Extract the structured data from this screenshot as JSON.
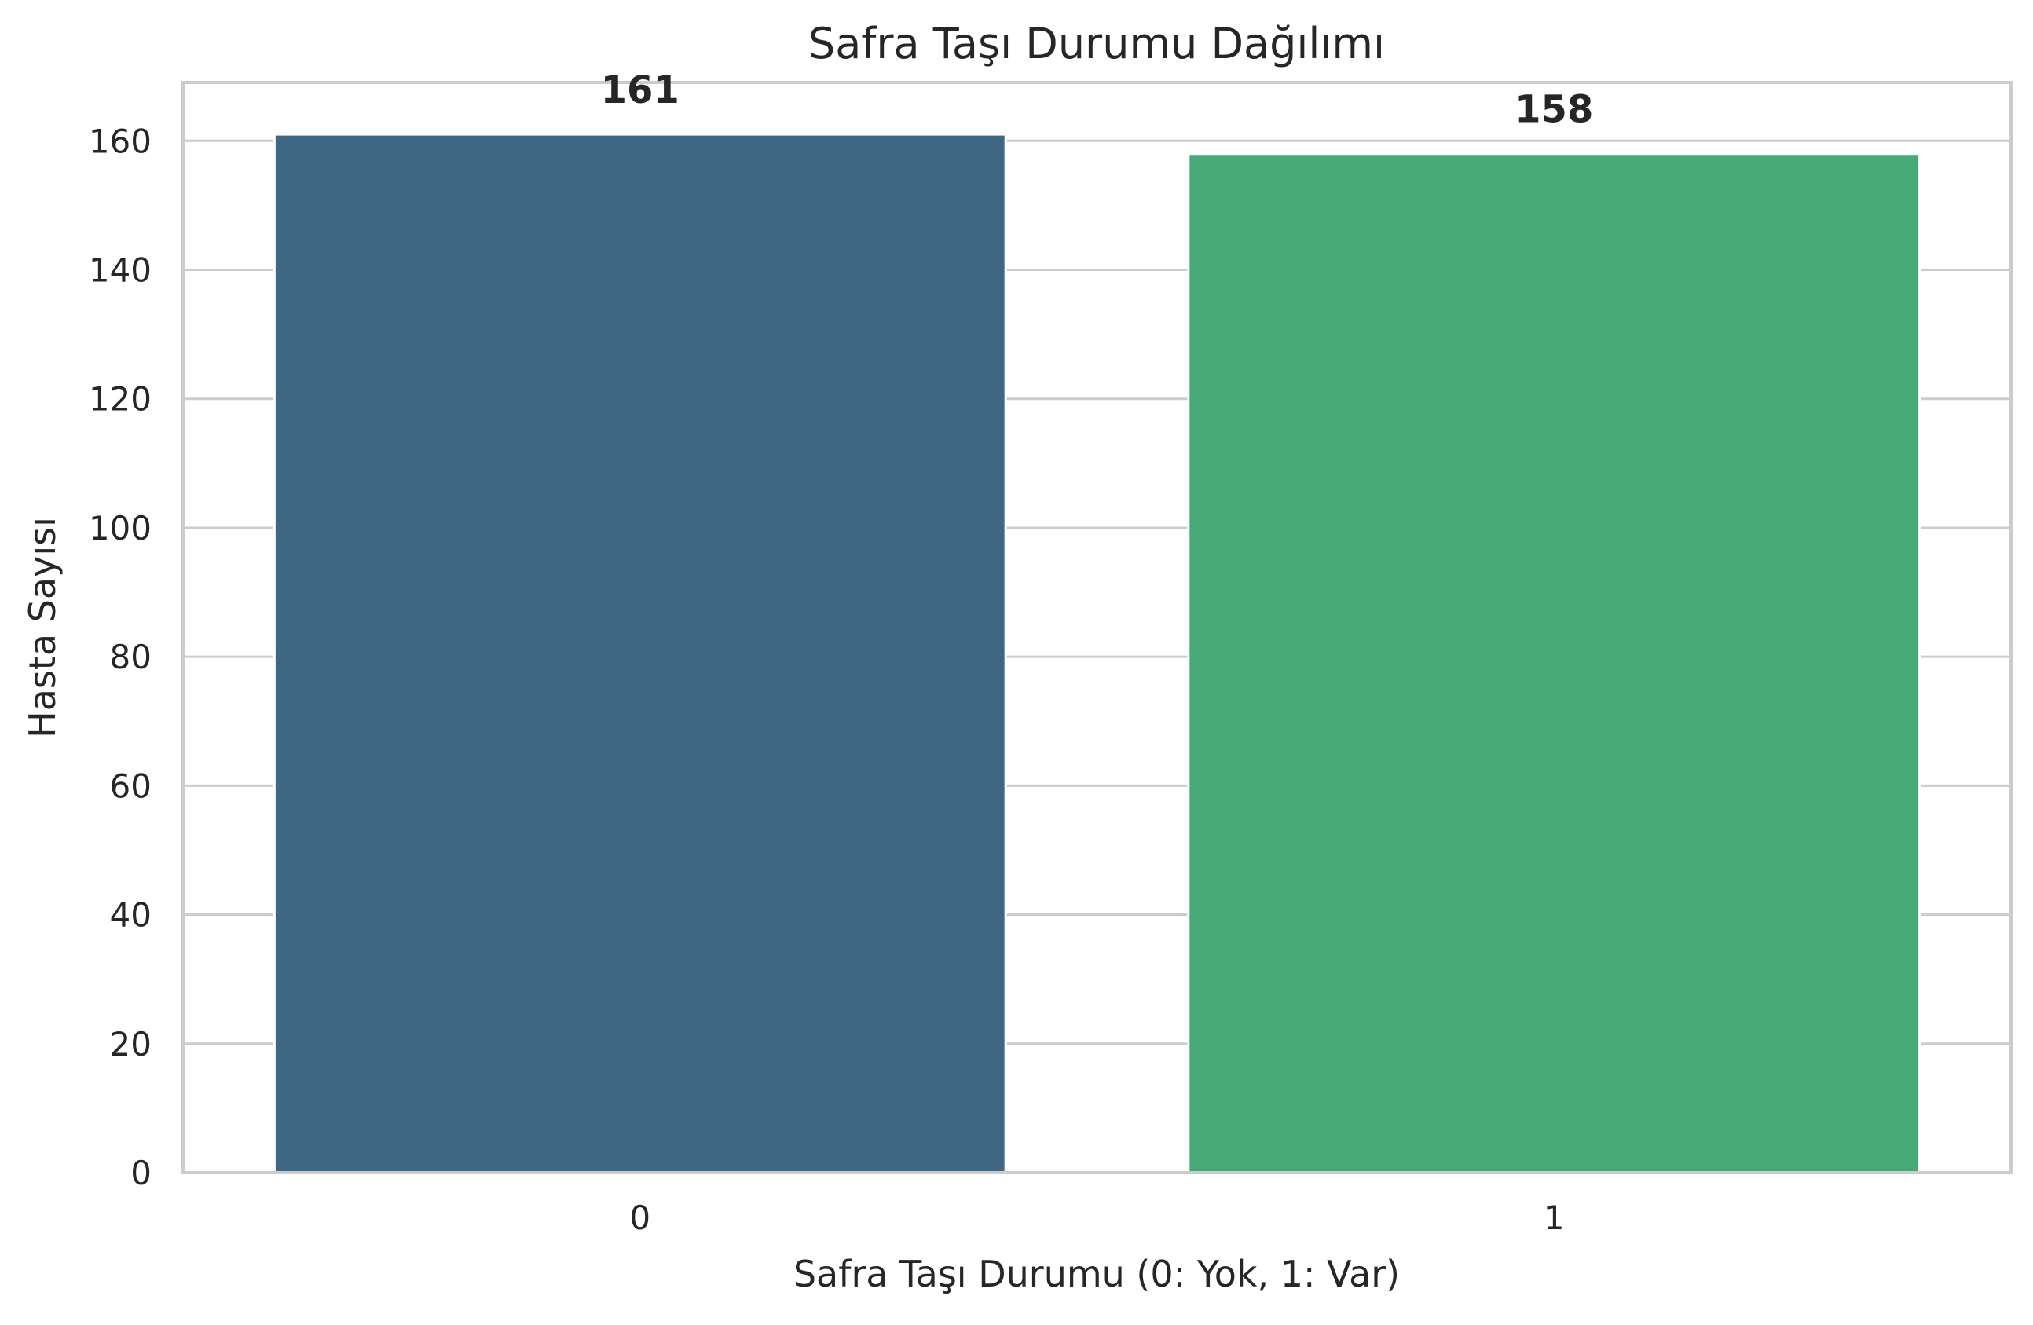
{
  "chart_data": {
    "type": "bar",
    "title": "Safra Taşı Durumu Dağılımı",
    "xlabel": "Safra Taşı Durumu (0: Yok, 1: Var)",
    "ylabel": "Hasta Sayısı",
    "categories": [
      "0",
      "1"
    ],
    "values": [
      161,
      158
    ],
    "data_labels": [
      "161",
      "158"
    ],
    "bar_colors": [
      "#3f6682",
      "#47a878"
    ],
    "ylim": [
      0,
      169.05
    ],
    "yticks": [
      0,
      20,
      40,
      60,
      80,
      100,
      120,
      140,
      160
    ],
    "ytick_labels": [
      "0",
      "20",
      "40",
      "60",
      "80",
      "100",
      "120",
      "140",
      "160"
    ],
    "grid": "horizontal",
    "legend": "none"
  }
}
